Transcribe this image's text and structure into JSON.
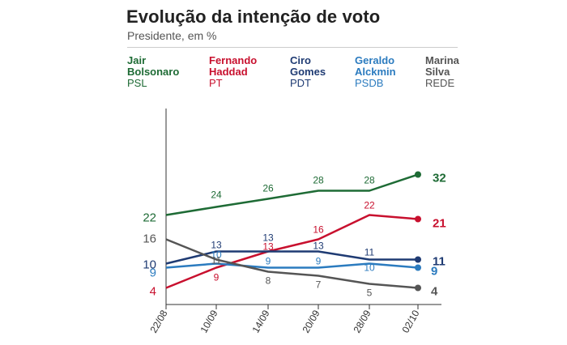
{
  "header": {
    "title": "Evolução da intenção de voto",
    "subtitle": "Presidente, em %"
  },
  "legend": [
    {
      "name_line1": "Jair",
      "name_line2": "Bolsonaro",
      "party": "PSL",
      "color": "#1e6b35"
    },
    {
      "name_line1": "Fernando",
      "name_line2": "Haddad",
      "party": "PT",
      "color": "#c8102e"
    },
    {
      "name_line1": "Ciro",
      "name_line2": "Gomes",
      "party": "PDT",
      "color": "#1f3b73"
    },
    {
      "name_line1": "Geraldo",
      "name_line2": "Alckmin",
      "party": "PSDB",
      "color": "#2b7bbf"
    },
    {
      "name_line1": "Marina",
      "name_line2": "Silva",
      "party": "REDE",
      "color": "#555555"
    }
  ],
  "chart_data": {
    "type": "line",
    "title": "Evolução da intenção de voto",
    "subtitle": "Presidente, em %",
    "xlabel": "",
    "ylabel": "",
    "x": [
      "22/08",
      "10/09",
      "14/09",
      "20/09",
      "28/09",
      "02/10"
    ],
    "ylim": [
      0,
      35
    ],
    "grid": false,
    "series": [
      {
        "name": "Jair Bolsonaro",
        "party": "PSL",
        "color": "#1e6b35",
        "values": [
          22,
          24,
          26,
          28,
          28,
          32
        ]
      },
      {
        "name": "Fernando Haddad",
        "party": "PT",
        "color": "#c8102e",
        "values": [
          4,
          9,
          13,
          16,
          22,
          21
        ]
      },
      {
        "name": "Ciro Gomes",
        "party": "PDT",
        "color": "#1f3b73",
        "values": [
          10,
          13,
          13,
          13,
          11,
          11
        ]
      },
      {
        "name": "Geraldo Alckmin",
        "party": "PSDB",
        "color": "#2b7bbf",
        "values": [
          9,
          10,
          9,
          9,
          10,
          9
        ]
      },
      {
        "name": "Marina Silva",
        "party": "REDE",
        "color": "#555555",
        "values": [
          16,
          11,
          8,
          7,
          5,
          4
        ]
      }
    ]
  }
}
